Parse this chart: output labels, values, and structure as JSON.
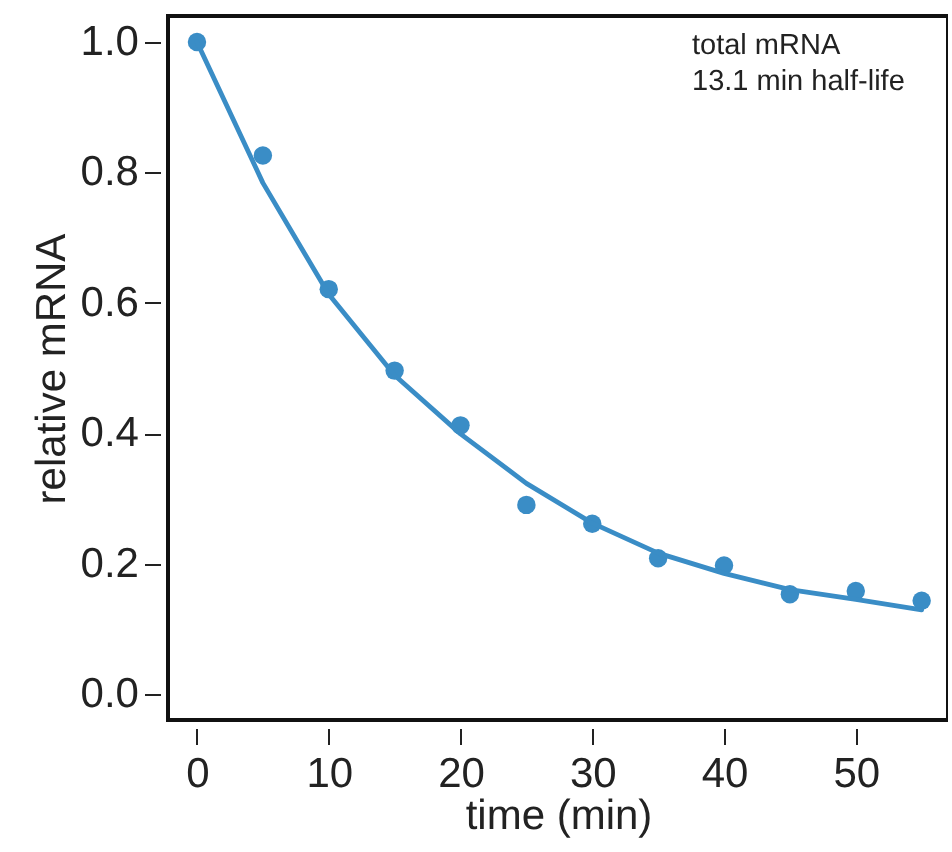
{
  "chart_data": {
    "type": "scatter",
    "xlabel": "time (min)",
    "ylabel": "relative mRNA",
    "annotations": [
      "total mRNA",
      "13.1 min half-life"
    ],
    "x": [
      0,
      5,
      10,
      15,
      20,
      25,
      30,
      35,
      40,
      45,
      50,
      55
    ],
    "series": [
      {
        "color": "#3a8dc6",
        "marker": "circle",
        "values": [
          1.0,
          0.826,
          0.621,
          0.496,
          0.412,
          0.29,
          0.261,
          0.208,
          0.197,
          0.153,
          0.158,
          0.143
        ]
      },
      {
        "type": "line",
        "color": "#3a8dc6",
        "values": [
          1.0,
          0.784,
          0.613,
          0.489,
          0.399,
          0.323,
          0.262,
          0.216,
          0.185,
          0.16,
          0.145,
          0.129
        ]
      }
    ],
    "xlim": [
      -2.2,
      57
    ],
    "xticks": [
      0,
      10,
      20,
      30,
      40,
      50
    ],
    "ylim": [
      -0.04,
      1.04
    ],
    "yticks": [
      {
        "value": 0,
        "label": "0.0"
      },
      {
        "value": 0.2,
        "label": "0.2"
      },
      {
        "value": 0.4,
        "label": "0.4"
      },
      {
        "value": 0.6,
        "label": "0.6"
      },
      {
        "value": 0.8,
        "label": "0.8"
      },
      {
        "value": 1,
        "label": "1.0"
      }
    ],
    "grid": false
  }
}
